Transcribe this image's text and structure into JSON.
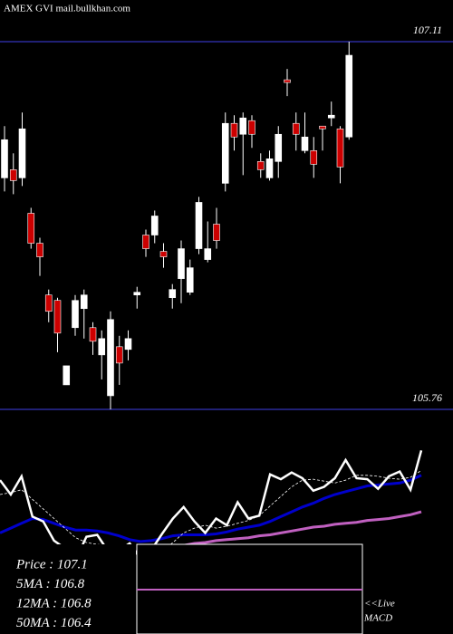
{
  "chart_data": {
    "type": "candlestick",
    "title": "AMEX  GVI mail.bullkhan.com",
    "ylim": [
      105.76,
      107.11
    ],
    "yticks": [
      105.76,
      107.11
    ],
    "up_color": "#ffffff",
    "down_color": "#cc0000",
    "open": [
      106.61,
      106.64,
      106.61,
      106.48,
      106.37,
      106.18,
      106.16,
      105.85,
      106.06,
      106.13,
      106.06,
      105.96,
      105.81,
      105.99,
      105.98,
      106.18,
      106.4,
      106.4,
      106.34,
      106.17,
      106.24,
      106.19,
      106.35,
      106.31,
      106.44,
      106.59,
      106.81,
      106.77,
      106.82,
      106.67,
      106.61,
      106.67,
      106.97,
      106.81,
      106.71,
      106.71,
      106.8,
      106.83,
      106.79,
      106.76
    ],
    "high": [
      106.8,
      106.7,
      106.85,
      106.5,
      106.39,
      106.2,
      106.17,
      105.92,
      106.18,
      106.2,
      106.08,
      106.05,
      106.12,
      106.03,
      106.05,
      106.21,
      106.42,
      106.49,
      106.37,
      106.22,
      106.38,
      106.31,
      106.54,
      106.45,
      106.5,
      106.85,
      106.84,
      106.85,
      106.84,
      106.7,
      106.71,
      106.8,
      107.01,
      106.85,
      106.85,
      106.76,
      106.8,
      106.89,
      106.8,
      107.11
    ],
    "low": [
      106.56,
      106.55,
      106.58,
      106.35,
      106.25,
      106.08,
      105.97,
      105.85,
      106.03,
      106.02,
      105.96,
      105.87,
      105.76,
      105.85,
      105.94,
      106.13,
      106.32,
      106.37,
      106.28,
      106.13,
      106.15,
      106.18,
      106.33,
      106.3,
      106.35,
      106.56,
      106.71,
      106.62,
      106.72,
      106.61,
      106.6,
      106.61,
      106.91,
      106.71,
      106.7,
      106.61,
      106.71,
      106.8,
      106.59,
      106.75
    ],
    "close": [
      106.75,
      106.6,
      106.79,
      106.37,
      106.32,
      106.12,
      106.04,
      105.92,
      106.16,
      106.18,
      106.01,
      106.02,
      106.09,
      105.93,
      106.02,
      106.19,
      106.35,
      106.47,
      106.32,
      106.2,
      106.35,
      106.28,
      106.52,
      106.35,
      106.38,
      106.81,
      106.76,
      106.83,
      106.77,
      106.64,
      106.68,
      106.77,
      106.96,
      106.77,
      106.76,
      106.66,
      106.79,
      106.84,
      106.65,
      107.06
    ],
    "series": [
      {
        "name": "5MA",
        "color": "#ffffff",
        "values": [
          106.6,
          106.62,
          106.65,
          106.55,
          106.45,
          106.35,
          106.25,
          106.15,
          106.1,
          106.08,
          106.07,
          106.06,
          106.02,
          105.99,
          105.98,
          106.0,
          106.1,
          106.2,
          106.25,
          106.28,
          106.25,
          106.27,
          106.3,
          106.33,
          106.38,
          106.48,
          106.58,
          106.68,
          106.75,
          106.76,
          106.74,
          106.72,
          106.75,
          106.8,
          106.8,
          106.79,
          106.77,
          106.76,
          106.78,
          106.85
        ]
      },
      {
        "name": "12MA",
        "color": "#0000cc",
        "values": [
          106.2,
          106.25,
          106.3,
          106.35,
          106.34,
          106.3,
          106.26,
          106.23,
          106.23,
          106.22,
          106.2,
          106.17,
          106.13,
          106.11,
          106.12,
          106.14,
          106.17,
          106.18,
          106.18,
          106.18,
          106.19,
          106.21,
          106.24,
          106.26,
          106.28,
          106.32,
          106.37,
          106.42,
          106.47,
          106.51,
          106.56,
          106.6,
          106.63,
          106.66,
          106.69,
          106.7,
          106.71,
          106.72,
          106.75,
          106.8
        ]
      },
      {
        "name": "50MA",
        "color": "#c060c0",
        "values": [
          105.96,
          105.97,
          105.98,
          105.98,
          105.99,
          105.99,
          106.0,
          106.0,
          106.0,
          106.0,
          106.0,
          106.0,
          106.0,
          106.01,
          106.02,
          106.03,
          106.05,
          106.07,
          106.09,
          106.1,
          106.12,
          106.13,
          106.14,
          106.15,
          106.17,
          106.18,
          106.2,
          106.22,
          106.24,
          106.26,
          106.27,
          106.29,
          106.3,
          106.31,
          106.33,
          106.34,
          106.35,
          106.37,
          106.39,
          106.42
        ]
      }
    ],
    "legend": [
      "Price  :  107.1",
      "5MA  :  106.8",
      "12MA  :  106.8",
      "50MA  :  106.4"
    ],
    "live_label": "<<Live",
    "macd_label": "MACD"
  }
}
